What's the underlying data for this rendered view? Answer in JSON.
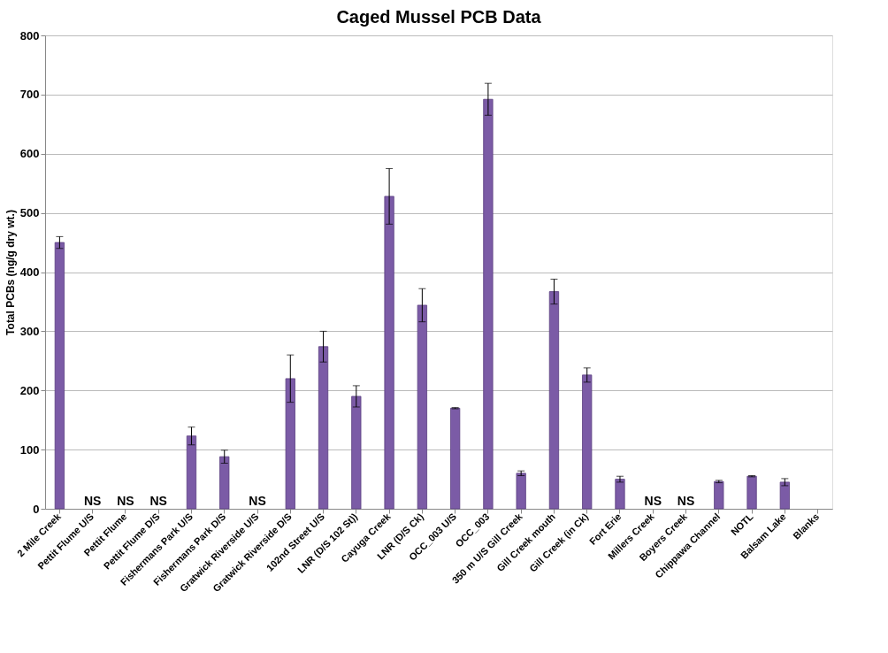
{
  "chart_data": {
    "type": "bar",
    "title": "Caged Mussel PCB Data",
    "ylabel": "Total PCBs (ng/g dry wt.)",
    "categories": [
      "2 Mile Creek",
      "Pettit Flume U/S",
      "Pettit Flume",
      "Pettit Flume D/S",
      "Fishermans Park U/S",
      "Fishermans Park D/S",
      "Gratwick Riverside U/S",
      "Gratwick Riverside D/S",
      "102nd Street U/S",
      "LNR (D/S 102 St))",
      "Cayuga Creek",
      "LNR (D/S Ck)",
      "OCC_003 U/S",
      "OCC_003",
      "350 m U/S Gill Creek",
      "Gill Creek mouth",
      "Gill Creek (in Ck)",
      "Fort Erie",
      "Millers Creek",
      "Boyers Creek",
      "Chippawa Channel",
      "NOTL",
      "Balsam Lake",
      "Blanks"
    ],
    "values": [
      450,
      null,
      null,
      null,
      123,
      88,
      null,
      220,
      274,
      190,
      528,
      344,
      170,
      692,
      60,
      367,
      226,
      50,
      null,
      null,
      46,
      55,
      45,
      null
    ],
    "errors": [
      10,
      null,
      null,
      null,
      15,
      11,
      null,
      40,
      26,
      18,
      47,
      28,
      1,
      27,
      4,
      21,
      12,
      5,
      null,
      null,
      2,
      1,
      6,
      null
    ],
    "color": "#7b5ba6",
    "ylim": [
      0,
      800
    ],
    "yticks": [
      0,
      100,
      200,
      300,
      400,
      500,
      600,
      700,
      800
    ],
    "grid": "y",
    "value_labels": [
      null,
      "NS",
      "NS",
      "NS",
      null,
      null,
      "NS",
      null,
      null,
      null,
      null,
      null,
      null,
      null,
      null,
      null,
      null,
      null,
      "NS",
      "NS",
      null,
      null,
      null,
      null
    ]
  }
}
